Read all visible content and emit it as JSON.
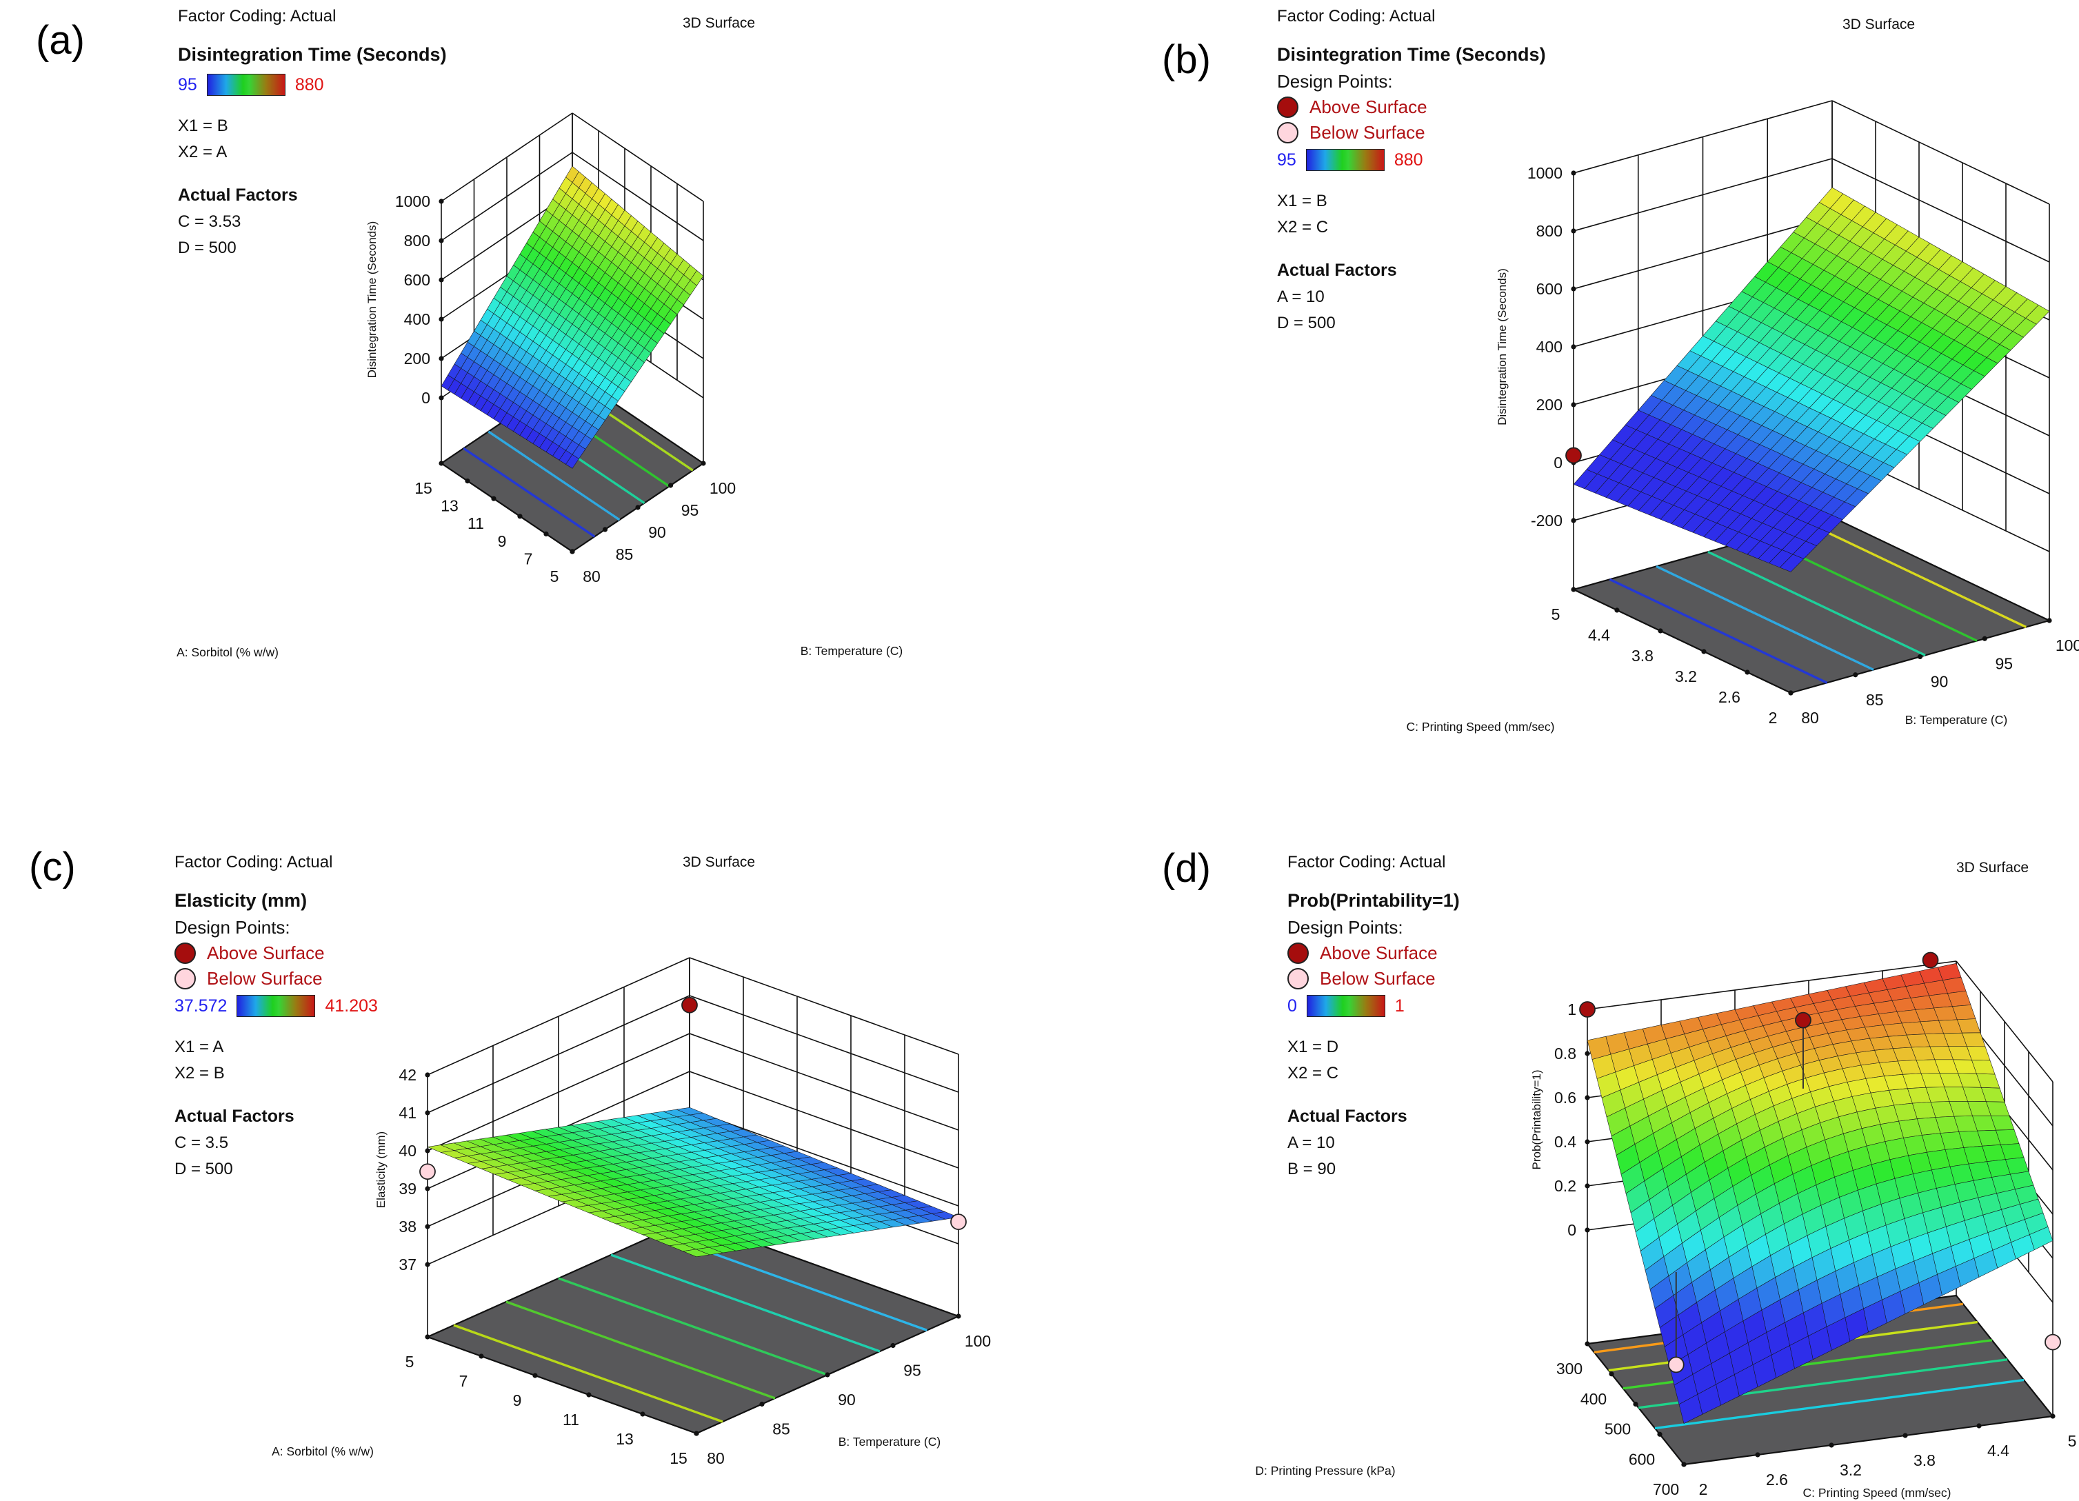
{
  "chart_data": [
    {
      "id": "a",
      "type": "surface3d",
      "corner_label": "(a)",
      "factor_coding": "Factor Coding: Actual",
      "plot_title": "3D Surface",
      "response": "Disintegration Time (Seconds)",
      "scale_min": "95",
      "scale_max": "880",
      "x1": "X1 = B",
      "x2": "X2 = A",
      "actual_factors_label": "Actual Factors",
      "factors": [
        "C = 3.53",
        "D = 500"
      ],
      "z_axis": {
        "label": "Disintegration Time (Seconds)",
        "min": 0,
        "max": 1000,
        "ticks": [
          0,
          200,
          400,
          600,
          800,
          1000
        ]
      },
      "s_axis": {
        "label": "B: Temperature (C)",
        "ticks": [
          "80",
          "85",
          "90",
          "95",
          "100"
        ]
      },
      "t_axis": {
        "label": "A: Sorbitol (% w/w)",
        "ticks": [
          "15",
          "13",
          "11",
          "9",
          "7",
          "5"
        ]
      },
      "color_range": [
        95,
        880
      ],
      "surface": {
        "f": 90,
        "l": 60,
        "r": 620,
        "bk": 730,
        "bump": 0
      },
      "contours": [
        {
          "axis": "s",
          "pos": 0.17,
          "color": "#2438d4"
        },
        {
          "axis": "s",
          "pos": 0.36,
          "color": "#2fa8e0"
        },
        {
          "axis": "s",
          "pos": 0.55,
          "color": "#1ecf9a"
        },
        {
          "axis": "s",
          "pos": 0.74,
          "color": "#2fc32f"
        },
        {
          "axis": "s",
          "pos": 0.92,
          "color": "#a8d81e"
        }
      ],
      "design_points": []
    },
    {
      "id": "b",
      "type": "surface3d",
      "corner_label": "(b)",
      "factor_coding": "Factor Coding: Actual",
      "plot_title": "3D Surface",
      "response": "Disintegration Time (Seconds)",
      "design_points_label": "Design Points:",
      "legend_above": "Above Surface",
      "legend_below": "Below Surface",
      "scale_min": "95",
      "scale_max": "880",
      "x1": "X1 = B",
      "x2": "X2 = C",
      "actual_factors_label": "Actual Factors",
      "factors": [
        "A = 10",
        "D = 500"
      ],
      "z_axis": {
        "label": "Disintegration Time (Seconds)",
        "min": -200,
        "max": 1000,
        "ticks": [
          -200,
          0,
          200,
          400,
          600,
          800,
          1000
        ]
      },
      "s_axis": {
        "label": "B: Temperature (C)",
        "ticks": [
          "80",
          "85",
          "90",
          "95",
          "100"
        ]
      },
      "t_axis": {
        "label": "C: Printing Speed (mm/sec)",
        "ticks": [
          "5",
          "4.4",
          "3.8",
          "3.2",
          "2.6",
          "2"
        ]
      },
      "color_range": [
        95,
        880
      ],
      "surface": {
        "f": -20,
        "l": -75,
        "r": 630,
        "bk": 700,
        "bump": 0
      },
      "contours": [
        {
          "axis": "s",
          "pos": 0.14,
          "color": "#2438d4"
        },
        {
          "axis": "s",
          "pos": 0.32,
          "color": "#2fa8e0"
        },
        {
          "axis": "s",
          "pos": 0.52,
          "color": "#1ecf9a"
        },
        {
          "axis": "s",
          "pos": 0.72,
          "color": "#2fc32f"
        },
        {
          "axis": "s",
          "pos": 0.91,
          "color": "#d8d81e"
        }
      ],
      "design_points": [
        {
          "type": "above",
          "s": 0,
          "t": 1,
          "z": 25
        }
      ]
    },
    {
      "id": "c",
      "type": "surface3d",
      "corner_label": "(c)",
      "factor_coding": "Factor Coding: Actual",
      "plot_title": "3D Surface",
      "response": "Elasticity (mm)",
      "design_points_label": "Design Points:",
      "legend_above": "Above Surface",
      "legend_below": "Below Surface",
      "scale_min": "37.572",
      "scale_max": "41.203",
      "x1": "X1 = A",
      "x2": "X2 = B",
      "actual_factors_label": "Actual Factors",
      "factors": [
        "C = 3.5",
        "D = 500"
      ],
      "z_axis": {
        "label": "Elasticity (mm)",
        "min": 37,
        "max": 42,
        "ticks": [
          37,
          38,
          39,
          40,
          41,
          42
        ]
      },
      "s_axis": {
        "label": "B: Temperature (C)",
        "ticks": [
          "80",
          "85",
          "90",
          "95",
          "100"
        ]
      },
      "t_axis": {
        "label": "A: Sorbitol (% w/w)",
        "ticks": [
          "5",
          "7",
          "9",
          "11",
          "13",
          "15"
        ]
      },
      "color_range": [
        37.572,
        41.203
      ],
      "surface": {
        "f": 39.75,
        "l": 40.1,
        "r": 37.7,
        "bk": 38.05,
        "bump": 0
      },
      "contours": [
        {
          "axis": "s",
          "pos": 0.1,
          "color": "#b8d818"
        },
        {
          "axis": "s",
          "pos": 0.3,
          "color": "#52c92e"
        },
        {
          "axis": "s",
          "pos": 0.5,
          "color": "#2fc95a"
        },
        {
          "axis": "s",
          "pos": 0.7,
          "color": "#1fcfae"
        },
        {
          "axis": "s",
          "pos": 0.88,
          "color": "#2db5e8"
        }
      ],
      "design_points": [
        {
          "type": "above",
          "s": 1,
          "t": 1,
          "z": 40.75
        },
        {
          "type": "below",
          "s": 0,
          "t": 1,
          "z": 39.45
        },
        {
          "type": "below",
          "s": 1,
          "t": 0,
          "z": 37.58
        }
      ]
    },
    {
      "id": "d",
      "type": "surface3d",
      "corner_label": "(d)",
      "factor_coding": "Factor Coding: Actual",
      "plot_title": "3D Surface",
      "response": "Prob(Printability=1)",
      "design_points_label": "Design Points:",
      "legend_above": "Above Surface",
      "legend_below": "Below Surface",
      "scale_min": "0",
      "scale_max": "1",
      "x1": "X1 = D",
      "x2": "X2 = C",
      "actual_factors_label": "Actual Factors",
      "factors": [
        "A = 10",
        "B = 90"
      ],
      "z_axis": {
        "label": "Prob(Printability=1)",
        "min": 0,
        "max": 1,
        "ticks": [
          0,
          0.2,
          0.4,
          0.6,
          0.8,
          1
        ]
      },
      "s_axis": {
        "label": "C: Printing Speed (mm/sec)",
        "ticks": [
          "2",
          "2.6",
          "3.2",
          "3.8",
          "4.4",
          "5"
        ]
      },
      "t_axis": {
        "label": "D: Printing Pressure (kPa)",
        "ticks": [
          "300",
          "400",
          "500",
          "600",
          "700"
        ]
      },
      "color_range": [
        0,
        1
      ],
      "surface": {
        "f": -0.33,
        "l": 0.86,
        "r": 0.28,
        "bk": 0.99,
        "bump": 0.2
      },
      "contours": [
        {
          "axis": "t",
          "pos": 0.93,
          "color": "#f89a18"
        },
        {
          "axis": "t",
          "pos": 0.78,
          "color": "#c8e11b"
        },
        {
          "axis": "t",
          "pos": 0.63,
          "color": "#3ed32c"
        },
        {
          "axis": "t",
          "pos": 0.47,
          "color": "#1fd38a"
        },
        {
          "axis": "t",
          "pos": 0.3,
          "color": "#19cde0"
        }
      ],
      "design_points": [
        {
          "type": "above",
          "s": 0,
          "t": 1,
          "z": 1.0
        },
        {
          "type": "above",
          "s": 0.93,
          "t": 1,
          "z": 1.02
        },
        {
          "type": "above",
          "s": 0.53,
          "t": 0.79,
          "z": 0.95,
          "stem_z": 0.64
        },
        {
          "type": "below",
          "s": 1,
          "t": 0,
          "z": -0.18
        },
        {
          "type": "below",
          "s": 0.17,
          "t": 0.73,
          "z": -0.5,
          "stem_z": -0.08
        }
      ]
    }
  ]
}
